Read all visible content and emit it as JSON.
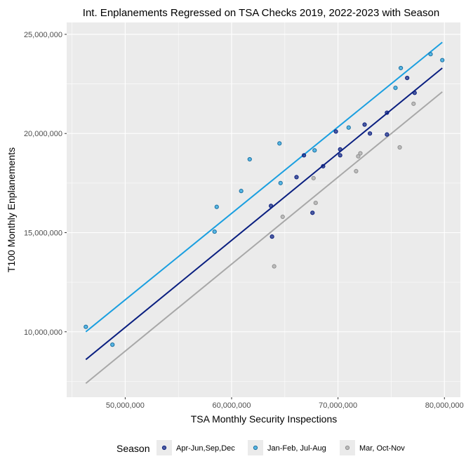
{
  "chart_data": {
    "type": "scatter",
    "title": "Int. Enplanements Regressed on TSA Checks 2019, 2022-2023 with Season",
    "xlabel": "TSA Monthly Security Inspections",
    "ylabel": "T100 Monthly Enplanements",
    "xlim": [
      44500000,
      81500000
    ],
    "ylim": [
      6700000,
      25600000
    ],
    "x_ticks": [
      50000000,
      60000000,
      70000000,
      80000000
    ],
    "x_tick_labels": [
      "50,000,000",
      "60,000,000",
      "70,000,000",
      "80,000,000"
    ],
    "y_ticks": [
      10000000,
      15000000,
      20000000,
      25000000
    ],
    "y_tick_labels": [
      "10,000,000",
      "15,000,000",
      "20,000,000",
      "25,000,000"
    ],
    "grid": true,
    "legend": {
      "title": "Season",
      "position": "bottom",
      "entries": [
        "Apr-Jun,Sep,Dec",
        "Jan-Feb, Jul-Aug",
        "Mar, Oct-Nov"
      ]
    },
    "series": [
      {
        "name": "Apr-Jun,Sep,Dec",
        "color": "#0a1f80",
        "points": [
          [
            63700000,
            16350000
          ],
          [
            63800000,
            14800000
          ],
          [
            66100000,
            17800000
          ],
          [
            66800000,
            18900000
          ],
          [
            67600000,
            16000000
          ],
          [
            68600000,
            18350000
          ],
          [
            69800000,
            20100000
          ],
          [
            70200000,
            18900000
          ],
          [
            70200000,
            19200000
          ],
          [
            72500000,
            20450000
          ],
          [
            73000000,
            20000000
          ],
          [
            74600000,
            21050000
          ],
          [
            74600000,
            19950000
          ],
          [
            76500000,
            22800000
          ],
          [
            77200000,
            22050000
          ]
        ],
        "fit": [
          [
            46300000,
            8600000
          ],
          [
            79800000,
            23300000
          ]
        ]
      },
      {
        "name": "Jan-Feb, Jul-Aug",
        "color": "#1a9fe0",
        "points": [
          [
            46300000,
            10250000
          ],
          [
            48800000,
            9350000
          ],
          [
            58400000,
            15050000
          ],
          [
            58600000,
            16300000
          ],
          [
            60900000,
            17100000
          ],
          [
            61700000,
            18700000
          ],
          [
            64500000,
            19500000
          ],
          [
            64600000,
            17500000
          ],
          [
            67800000,
            19150000
          ],
          [
            71000000,
            20300000
          ],
          [
            75400000,
            22300000
          ],
          [
            75900000,
            23300000
          ],
          [
            78700000,
            24000000
          ],
          [
            79800000,
            23700000
          ]
        ],
        "fit": [
          [
            46300000,
            10000000
          ],
          [
            79800000,
            24600000
          ]
        ]
      },
      {
        "name": "Mar, Oct-Nov",
        "color": "#a8a8a8",
        "points": [
          [
            64000000,
            13300000
          ],
          [
            64800000,
            15800000
          ],
          [
            67700000,
            17750000
          ],
          [
            67900000,
            16500000
          ],
          [
            71700000,
            18100000
          ],
          [
            71900000,
            18850000
          ],
          [
            72100000,
            19000000
          ],
          [
            75800000,
            19300000
          ],
          [
            77100000,
            21500000
          ]
        ],
        "fit": [
          [
            46300000,
            7400000
          ],
          [
            79800000,
            22100000
          ]
        ]
      }
    ]
  }
}
